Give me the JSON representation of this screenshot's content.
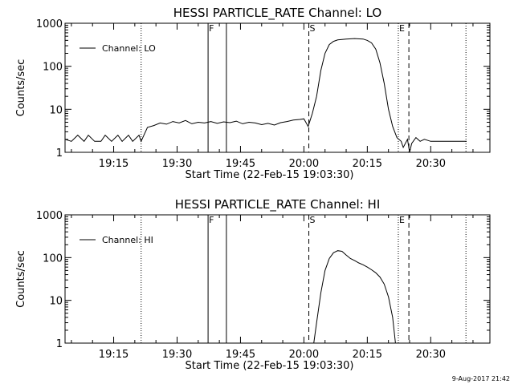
{
  "chart_data": [
    {
      "type": "line",
      "title": "HESSI PARTICLE_RATE Channel: LO",
      "xlabel": "Start Time (22-Feb-15 19:03:30)",
      "ylabel": "Counts/sec",
      "y_scale": "log",
      "ylim": [
        1,
        1000
      ],
      "xlim": [
        "19:03:30",
        "20:44:00"
      ],
      "x_ticks": [
        "19:15",
        "19:30",
        "19:45",
        "20:00",
        "20:15",
        "20:30"
      ],
      "y_ticks": [
        "1",
        "10",
        "100",
        "1000"
      ],
      "grid": false,
      "legend": {
        "position": "top-left",
        "entries": [
          "Channel: LO"
        ]
      },
      "markers": [
        {
          "label": "",
          "time": "19:21:30",
          "style": "dotted"
        },
        {
          "label": "F",
          "time": "19:37:20",
          "style": "solid"
        },
        {
          "label": "",
          "time": "19:41:40",
          "style": "solid"
        },
        {
          "label": "S",
          "time": "20:01:10",
          "style": "dashed"
        },
        {
          "label": "E",
          "time": "20:22:20",
          "style": "dotted"
        },
        {
          "label": "",
          "time": "20:24:50",
          "style": "dashed"
        },
        {
          "label": "",
          "time": "20:38:20",
          "style": "dotted"
        }
      ],
      "series": [
        {
          "name": "Channel: LO",
          "x": [
            "19:03:30",
            "19:05:00",
            "19:06:30",
            "19:08:00",
            "19:09:00",
            "19:10:30",
            "19:12:00",
            "19:13:00",
            "19:14:30",
            "19:16:00",
            "19:17:00",
            "19:18:30",
            "19:19:30",
            "19:21:00",
            "19:21:30",
            "19:23:00",
            "19:24:30",
            "19:26:00",
            "19:27:30",
            "19:29:00",
            "19:30:30",
            "19:32:00",
            "19:33:30",
            "19:35:00",
            "19:36:30",
            "19:38:00",
            "19:39:30",
            "19:41:00",
            "19:42:30",
            "19:44:00",
            "19:45:30",
            "19:47:00",
            "19:48:30",
            "19:50:00",
            "19:51:30",
            "19:53:00",
            "19:54:30",
            "19:56:00",
            "19:57:30",
            "19:59:00",
            "20:00:00",
            "20:01:00",
            "20:02:00",
            "20:03:00",
            "20:04:00",
            "20:05:00",
            "20:06:00",
            "20:07:00",
            "20:08:00",
            "20:09:00",
            "20:10:00",
            "20:12:00",
            "20:14:00",
            "20:15:00",
            "20:16:00",
            "20:17:00",
            "20:18:00",
            "20:19:00",
            "20:20:00",
            "20:21:00",
            "20:22:00",
            "20:23:00",
            "20:23:30",
            "20:24:30",
            "20:25:00",
            "20:25:30",
            "20:26:30",
            "20:27:30",
            "20:28:30",
            "20:30:00",
            "20:32:00",
            "20:34:00",
            "20:36:00",
            "20:38:30"
          ],
          "values": [
            2,
            1.8,
            2.5,
            1.8,
            2.5,
            1.8,
            1.8,
            2.5,
            1.8,
            2.5,
            1.8,
            2.5,
            1.8,
            2.5,
            1.8,
            3.8,
            4.2,
            4.8,
            4.5,
            5.2,
            4.8,
            5.5,
            4.6,
            5.0,
            4.8,
            5.2,
            4.7,
            5.1,
            4.9,
            5.3,
            4.6,
            5.0,
            4.8,
            4.4,
            4.7,
            4.3,
            4.9,
            5.2,
            5.6,
            5.8,
            6.0,
            4.0,
            8,
            20,
            80,
            200,
            320,
            380,
            410,
            420,
            430,
            440,
            430,
            400,
            350,
            250,
            120,
            40,
            10,
            4,
            2.2,
            1.8,
            1.3,
            2.0,
            1.0,
            1.6,
            2.2,
            1.8,
            2.0,
            1.8,
            1.8,
            1.8,
            1.8,
            1.8
          ]
        }
      ]
    },
    {
      "type": "line",
      "title": "HESSI PARTICLE_RATE Channel: HI",
      "xlabel": "Start Time (22-Feb-15 19:03:30)",
      "ylabel": "Counts/sec",
      "y_scale": "log",
      "ylim": [
        1,
        1000
      ],
      "xlim": [
        "19:03:30",
        "20:44:00"
      ],
      "x_ticks": [
        "19:15",
        "19:30",
        "19:45",
        "20:00",
        "20:15",
        "20:30"
      ],
      "y_ticks": [
        "1",
        "10",
        "100",
        "1000"
      ],
      "grid": false,
      "legend": {
        "position": "top-left",
        "entries": [
          "Channel: HI"
        ]
      },
      "markers": [
        {
          "label": "",
          "time": "19:21:30",
          "style": "dotted"
        },
        {
          "label": "F",
          "time": "19:37:20",
          "style": "solid"
        },
        {
          "label": "",
          "time": "19:41:40",
          "style": "solid"
        },
        {
          "label": "S",
          "time": "20:01:10",
          "style": "dashed"
        },
        {
          "label": "E",
          "time": "20:22:20",
          "style": "dotted"
        },
        {
          "label": "",
          "time": "20:24:50",
          "style": "dashed"
        },
        {
          "label": "",
          "time": "20:38:20",
          "style": "dotted"
        }
      ],
      "series": [
        {
          "name": "Channel: HI",
          "x": [
            "20:02:20",
            "20:03:00",
            "20:04:00",
            "20:05:00",
            "20:06:00",
            "20:07:00",
            "20:08:00",
            "20:09:00",
            "20:10:00",
            "20:11:00",
            "20:12:00",
            "20:13:00",
            "20:14:00",
            "20:15:00",
            "20:16:00",
            "20:17:00",
            "20:18:00",
            "20:19:00",
            "20:20:00",
            "20:21:00",
            "20:21:40"
          ],
          "values": [
            1.0,
            3,
            15,
            50,
            95,
            130,
            145,
            140,
            115,
            95,
            85,
            75,
            68,
            60,
            52,
            44,
            35,
            24,
            12,
            4,
            1.0
          ]
        }
      ]
    }
  ],
  "footer": {
    "timestamp": "9-Aug-2017 21:42"
  }
}
